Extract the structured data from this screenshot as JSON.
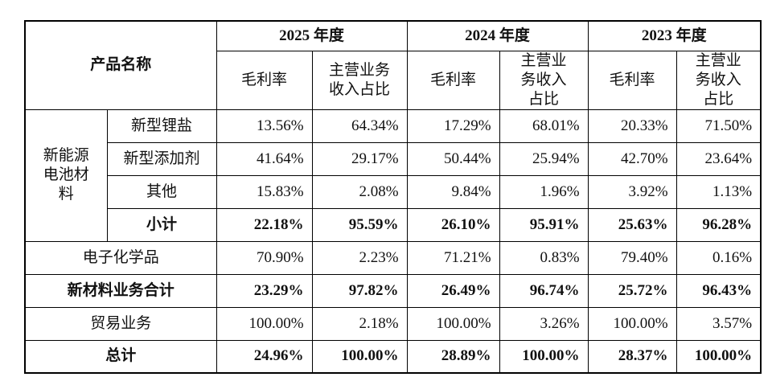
{
  "table": {
    "header": {
      "product": "产品名称",
      "years": [
        "2025 年度",
        "2024 年度",
        "2023 年度"
      ],
      "metrics": [
        [
          "毛利率",
          "主营业务收入占比"
        ],
        [
          "毛利率",
          "主营业务收入占比"
        ],
        [
          "毛利率",
          "主营业务收入占比"
        ]
      ]
    },
    "group": {
      "label": "新能源电池材料",
      "rows": [
        {
          "label": "新型锂盐",
          "bold": false,
          "cells": [
            "13.56%",
            "64.34%",
            "17.29%",
            "68.01%",
            "20.33%",
            "71.50%"
          ]
        },
        {
          "label": "新型添加剂",
          "bold": false,
          "cells": [
            "41.64%",
            "29.17%",
            "50.44%",
            "25.94%",
            "42.70%",
            "23.64%"
          ]
        },
        {
          "label": "其他",
          "bold": false,
          "cells": [
            "15.83%",
            "2.08%",
            "9.84%",
            "1.96%",
            "3.92%",
            "1.13%"
          ]
        },
        {
          "label": "小计",
          "bold": true,
          "cells": [
            "22.18%",
            "95.59%",
            "26.10%",
            "95.91%",
            "25.63%",
            "96.28%"
          ]
        }
      ]
    },
    "rows": [
      {
        "label": "电子化学品",
        "bold": false,
        "cells": [
          "70.90%",
          "2.23%",
          "71.21%",
          "0.83%",
          "79.40%",
          "0.16%"
        ]
      },
      {
        "label": "新材料业务合计",
        "bold": true,
        "cells": [
          "23.29%",
          "97.82%",
          "26.49%",
          "96.74%",
          "25.72%",
          "96.43%"
        ]
      },
      {
        "label": "贸易业务",
        "bold": false,
        "cells": [
          "100.00%",
          "2.18%",
          "100.00%",
          "3.26%",
          "100.00%",
          "3.57%"
        ]
      },
      {
        "label": "总计",
        "bold": true,
        "cells": [
          "24.96%",
          "100.00%",
          "28.89%",
          "100.00%",
          "28.37%",
          "100.00%"
        ]
      }
    ]
  }
}
